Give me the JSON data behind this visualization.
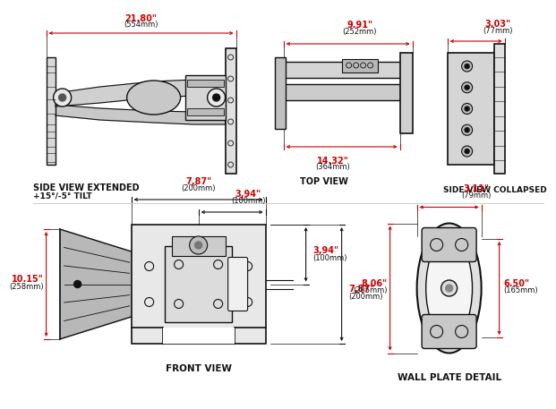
{
  "bg": "#ffffff",
  "lc": "#111111",
  "rc": "#cc0000",
  "views": {
    "side_ext": {
      "label": "SIDE VIEW EXTENDED",
      "sublabel": "+15°/-5° TILT",
      "dim_w": "21.80\"",
      "dim_w_mm": "(554mm)"
    },
    "top": {
      "label": "TOP VIEW",
      "dim_w": "9.91\"",
      "dim_w_mm": "(252mm)",
      "dim_d": "14.32\"",
      "dim_d_mm": "(364mm)"
    },
    "side_col": {
      "label": "SIDE VIEW COLLAPSED",
      "dim_w": "3.03\"",
      "dim_w_mm": "(77mm)"
    },
    "front": {
      "label": "FRONT VIEW",
      "dim_top_full": "7,87\"",
      "dim_top_full_mm": "(200mm)",
      "dim_top_half": "3,94\"",
      "dim_top_half_mm": "(100mm)",
      "dim_bot_half": "3,94\"",
      "dim_bot_half_mm": "(100mm)",
      "dim_bot_full": "7,87\"",
      "dim_bot_full_mm": "(200mm)",
      "dim_h": "10.15\"",
      "dim_h_mm": "(258mm)"
    },
    "wall": {
      "label": "WALL PLATE DETAIL",
      "dim_w": "3.11\"",
      "dim_w_mm": "(79mm)",
      "dim_h": "8.06\"",
      "dim_h_mm": "(205mm)",
      "dim_ih": "6.50\"",
      "dim_ih_mm": "(165mm)"
    }
  }
}
